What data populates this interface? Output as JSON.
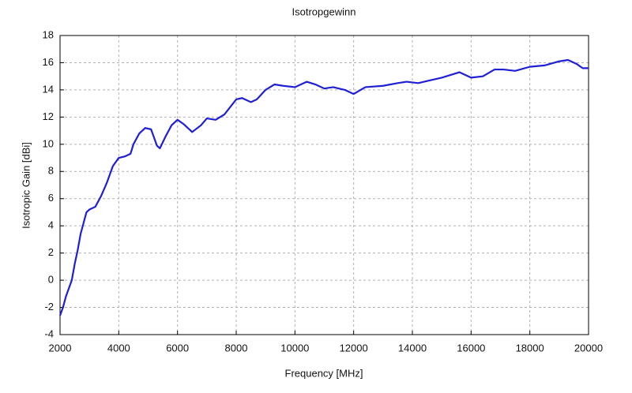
{
  "chart_data": {
    "type": "line",
    "title": "Isotropgewinn",
    "x_label": "Frequency [MHz]",
    "y_label": "Isotropic Gain [dBi]",
    "xlim": [
      2000,
      20000
    ],
    "ylim": [
      -4,
      18
    ],
    "xticks": [
      2000,
      4000,
      6000,
      8000,
      10000,
      12000,
      14000,
      16000,
      18000,
      20000
    ],
    "yticks": [
      -4,
      -2,
      0,
      2,
      4,
      6,
      8,
      10,
      12,
      14,
      16,
      18
    ],
    "grid": true,
    "series": [
      {
        "color": "#1f1fd6",
        "x": [
          2000,
          2100,
          2200,
          2300,
          2400,
          2500,
          2600,
          2700,
          2800,
          2900,
          3000,
          3200,
          3400,
          3600,
          3800,
          4000,
          4200,
          4400,
          4500,
          4700,
          4900,
          5100,
          5300,
          5400,
          5600,
          5800,
          6000,
          6200,
          6500,
          6800,
          7000,
          7300,
          7600,
          8000,
          8200,
          8500,
          8700,
          9000,
          9300,
          9600,
          10000,
          10400,
          10700,
          11000,
          11300,
          11700,
          12000,
          12400,
          13000,
          13500,
          13800,
          14200,
          14600,
          15000,
          15600,
          16000,
          16400,
          16800,
          17100,
          17500,
          18000,
          18500,
          19000,
          19300,
          19600,
          19800,
          20000
        ],
        "values": [
          -2.6,
          -2.0,
          -1.2,
          -0.6,
          0.0,
          1.2,
          2.2,
          3.4,
          4.2,
          5.0,
          5.2,
          5.4,
          6.2,
          7.2,
          8.4,
          9.0,
          9.1,
          9.3,
          10.0,
          10.8,
          11.2,
          11.1,
          9.9,
          9.7,
          10.6,
          11.4,
          11.8,
          11.5,
          10.9,
          11.4,
          11.9,
          11.8,
          12.2,
          13.3,
          13.4,
          13.1,
          13.3,
          14.0,
          14.4,
          14.3,
          14.2,
          14.6,
          14.4,
          14.1,
          14.2,
          14.0,
          13.7,
          14.2,
          14.3,
          14.5,
          14.6,
          14.5,
          14.7,
          14.9,
          15.3,
          14.9,
          15.0,
          15.5,
          15.5,
          15.4,
          15.7,
          15.8,
          16.1,
          16.2,
          15.9,
          15.6,
          15.6
        ]
      }
    ]
  }
}
